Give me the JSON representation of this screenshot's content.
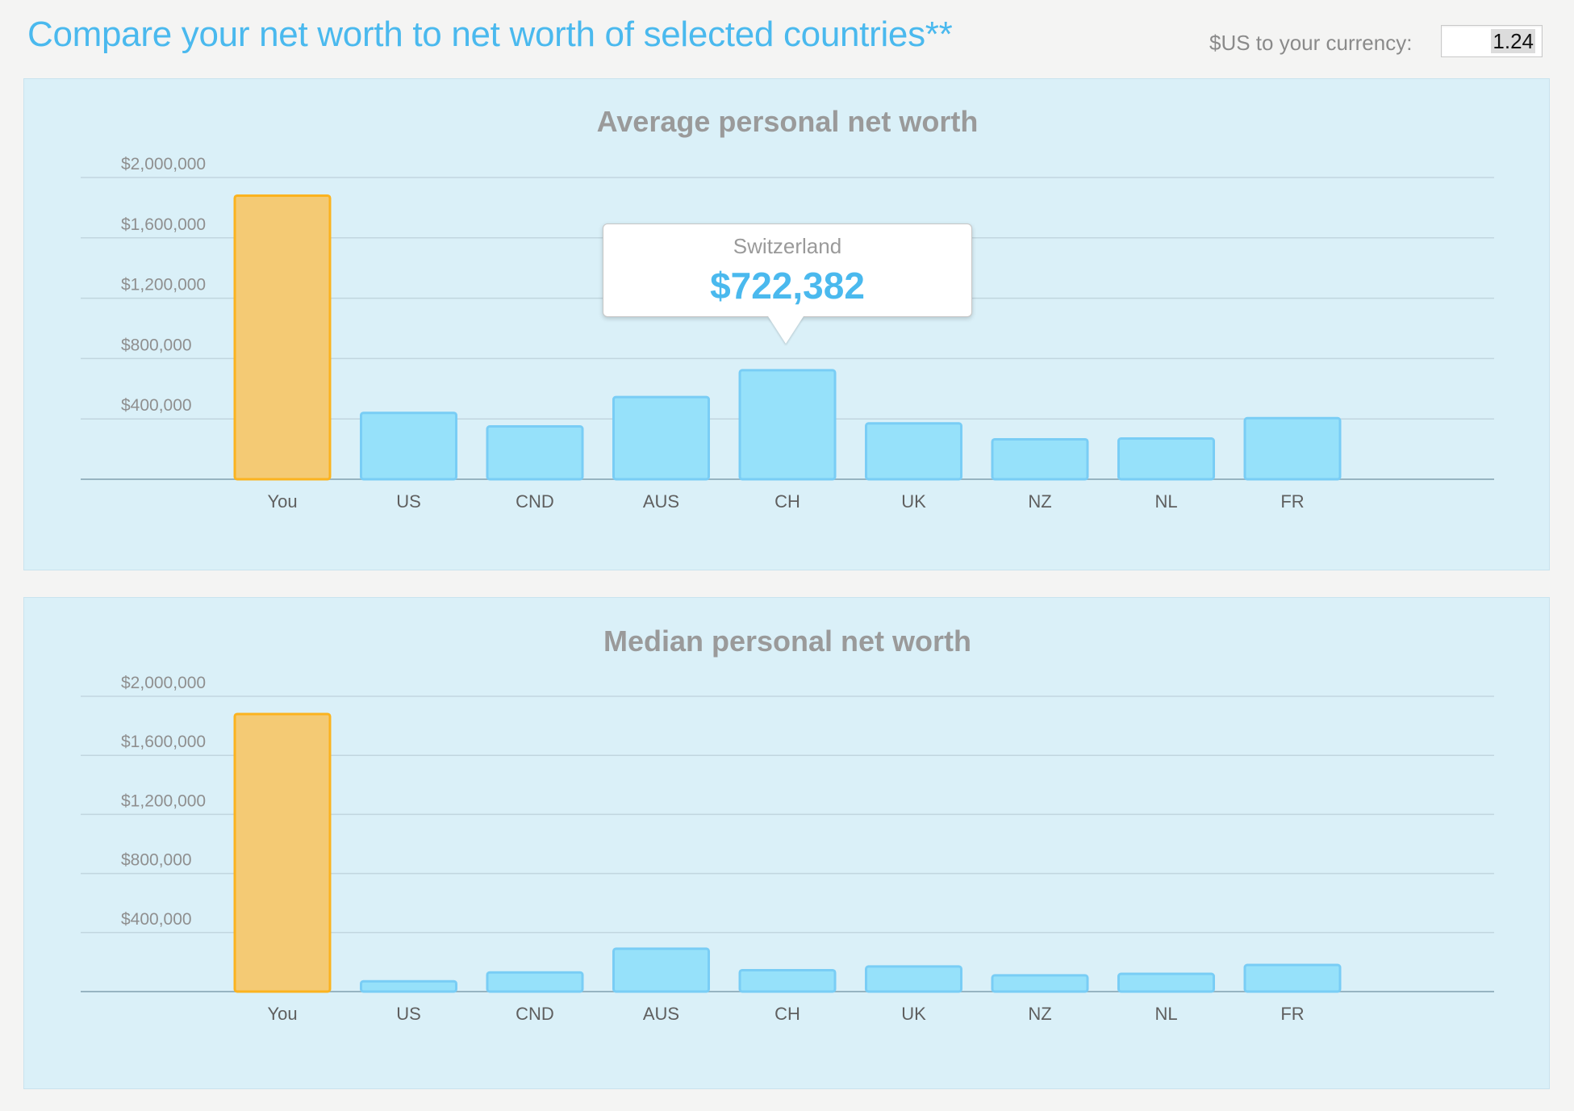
{
  "header": {
    "title": "Compare your net worth to net worth of selected countries**",
    "currency_label": "$US to your currency:",
    "currency_value": "1.24"
  },
  "colors": {
    "you_bar": "#f4ca74",
    "you_border": "#fbb31f",
    "country_bar": "#96e1fa",
    "country_border": "#79cdf5",
    "title_color": "#4ab9ee",
    "panel_bg": "#daf0f8"
  },
  "tooltip": {
    "name": "Switzerland",
    "value": "$722,382"
  },
  "chart_data": [
    {
      "type": "bar",
      "title": "Average personal net worth",
      "categories": [
        "You",
        "US",
        "CND",
        "AUS",
        "CH",
        "UK",
        "NZ",
        "NL",
        "FR"
      ],
      "values": [
        1880000,
        440000,
        350000,
        545000,
        722382,
        370000,
        265000,
        270000,
        405000
      ],
      "highlight": "You",
      "ylim": [
        0,
        2000000
      ],
      "yticks": [
        400000,
        800000,
        1200000,
        1600000,
        2000000
      ],
      "ytick_labels": [
        "$400,000",
        "$800,000",
        "$1,200,000",
        "$1,600,000",
        "$2,000,000"
      ],
      "grid": true
    },
    {
      "type": "bar",
      "title": "Median personal net worth",
      "categories": [
        "You",
        "US",
        "CND",
        "AUS",
        "CH",
        "UK",
        "NZ",
        "NL",
        "FR"
      ],
      "values": [
        1880000,
        70000,
        130000,
        290000,
        145000,
        170000,
        110000,
        120000,
        180000
      ],
      "highlight": "You",
      "ylim": [
        0,
        2000000
      ],
      "yticks": [
        400000,
        800000,
        1200000,
        1600000,
        2000000
      ],
      "ytick_labels": [
        "$400,000",
        "$800,000",
        "$1,200,000",
        "$1,600,000",
        "$2,000,000"
      ],
      "grid": true
    }
  ]
}
